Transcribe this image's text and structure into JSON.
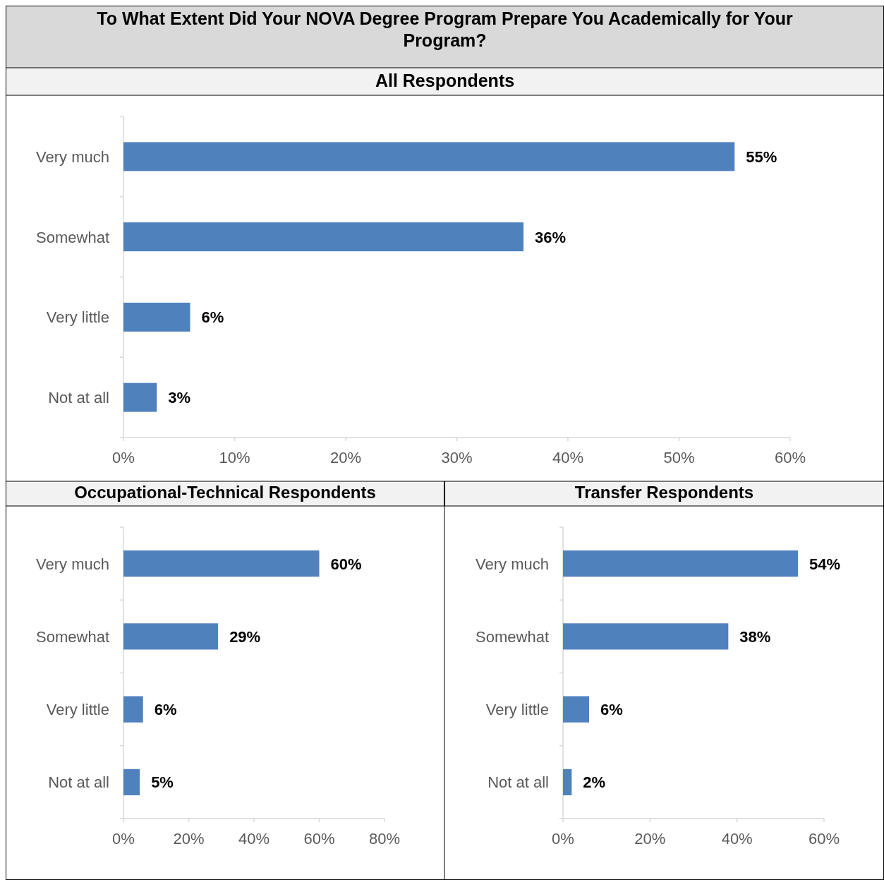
{
  "chart_data": [
    {
      "type": "bar",
      "orientation": "horizontal",
      "title": "To What Extent Did Your NOVA Degree Program Prepare You Academically for Your Program?",
      "subtitle": "All Respondents",
      "categories": [
        "Very much",
        "Somewhat",
        "Very little",
        "Not at all"
      ],
      "values": [
        55,
        36,
        6,
        3
      ],
      "value_labels": [
        "55%",
        "36%",
        "6%",
        "3%"
      ],
      "color": "#4f81bd",
      "xlim": [
        0,
        60
      ],
      "xticks": [
        {
          "value": 0,
          "label": "0%"
        },
        {
          "value": 10,
          "label": "10%"
        },
        {
          "value": 20,
          "label": "20%"
        },
        {
          "value": 30,
          "label": "30%"
        },
        {
          "value": 40,
          "label": "40%"
        },
        {
          "value": 50,
          "label": "50%"
        },
        {
          "value": 60,
          "label": "60%"
        }
      ],
      "grid": false
    },
    {
      "type": "bar",
      "orientation": "horizontal",
      "title": "Occupational-Technical Respondents",
      "categories": [
        "Very much",
        "Somewhat",
        "Very little",
        "Not at all"
      ],
      "values": [
        60,
        29,
        6,
        5
      ],
      "value_labels": [
        "60%",
        "29%",
        "6%",
        "5%"
      ],
      "color": "#4f81bd",
      "xlim": [
        0,
        80
      ],
      "xticks": [
        {
          "value": 0,
          "label": "0%"
        },
        {
          "value": 20,
          "label": "20%"
        },
        {
          "value": 40,
          "label": "40%"
        },
        {
          "value": 60,
          "label": "60%"
        },
        {
          "value": 80,
          "label": "80%"
        }
      ],
      "grid": false
    },
    {
      "type": "bar",
      "orientation": "horizontal",
      "title": "Transfer Respondents",
      "categories": [
        "Very much",
        "Somewhat",
        "Very little",
        "Not at all"
      ],
      "values": [
        54,
        38,
        6,
        2
      ],
      "value_labels": [
        "54%",
        "38%",
        "6%",
        "2%"
      ],
      "color": "#4f81bd",
      "xlim": [
        0,
        60
      ],
      "xticks": [
        {
          "value": 0,
          "label": "0%"
        },
        {
          "value": 20,
          "label": "20%"
        },
        {
          "value": 40,
          "label": "40%"
        },
        {
          "value": 60,
          "label": "60%"
        }
      ],
      "grid": false
    }
  ]
}
